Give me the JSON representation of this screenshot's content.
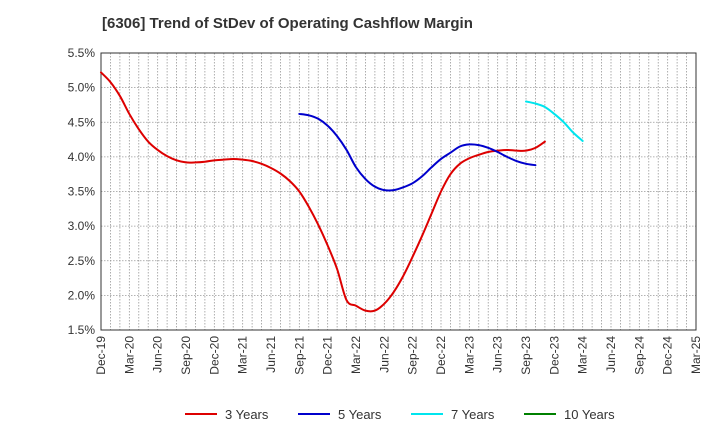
{
  "chart_data": {
    "type": "line",
    "title": "[6306]  Trend of StDev of Operating Cashflow Margin",
    "xlabel": "",
    "ylabel": "",
    "x_tick_labels": [
      "Dec-19",
      "Mar-20",
      "Jun-20",
      "Sep-20",
      "Dec-20",
      "Mar-21",
      "Jun-21",
      "Sep-21",
      "Dec-21",
      "Mar-22",
      "Jun-22",
      "Sep-22",
      "Dec-22",
      "Mar-23",
      "Jun-23",
      "Sep-23",
      "Dec-23",
      "Mar-24",
      "Jun-24",
      "Sep-24",
      "Dec-24",
      "Mar-25"
    ],
    "y_tick_labels": [
      "1.5%",
      "2.0%",
      "2.5%",
      "3.0%",
      "3.5%",
      "4.0%",
      "4.5%",
      "5.0%",
      "5.5%"
    ],
    "ylim": [
      1.5,
      5.5
    ],
    "y_unit": "%",
    "grid": true,
    "legend_position": "bottom",
    "series": [
      {
        "name": "3 Years",
        "color": "#dd0000",
        "start": "Dec-19",
        "values": [
          5.22,
          5.08,
          4.88,
          4.62,
          4.4,
          4.22,
          4.1,
          4.01,
          3.95,
          3.92,
          3.92,
          3.93,
          3.95,
          3.96,
          3.97,
          3.96,
          3.94,
          3.9,
          3.84,
          3.76,
          3.65,
          3.5,
          3.28,
          3.02,
          2.72,
          2.38,
          1.93,
          1.85,
          1.78,
          1.78,
          1.88,
          2.05,
          2.28,
          2.56,
          2.86,
          3.18,
          3.5,
          3.75,
          3.9,
          3.98,
          4.03,
          4.07,
          4.09,
          4.1,
          4.09,
          4.09,
          4.13,
          4.22
        ]
      },
      {
        "name": "5 Years",
        "color": "#0000cc",
        "start": "Sep-21",
        "values": [
          4.62,
          4.6,
          4.55,
          4.45,
          4.3,
          4.1,
          3.85,
          3.68,
          3.57,
          3.52,
          3.52,
          3.56,
          3.62,
          3.72,
          3.85,
          3.97,
          4.06,
          4.15,
          4.18,
          4.17,
          4.13,
          4.07,
          4.0,
          3.94,
          3.9,
          3.88
        ]
      },
      {
        "name": "7 Years",
        "color": "#00e5ee",
        "start": "Sep-23",
        "values": [
          4.8,
          4.77,
          4.72,
          4.62,
          4.5,
          4.35,
          4.23
        ]
      },
      {
        "name": "10 Years",
        "color": "#008000",
        "start": "",
        "values": []
      }
    ]
  }
}
